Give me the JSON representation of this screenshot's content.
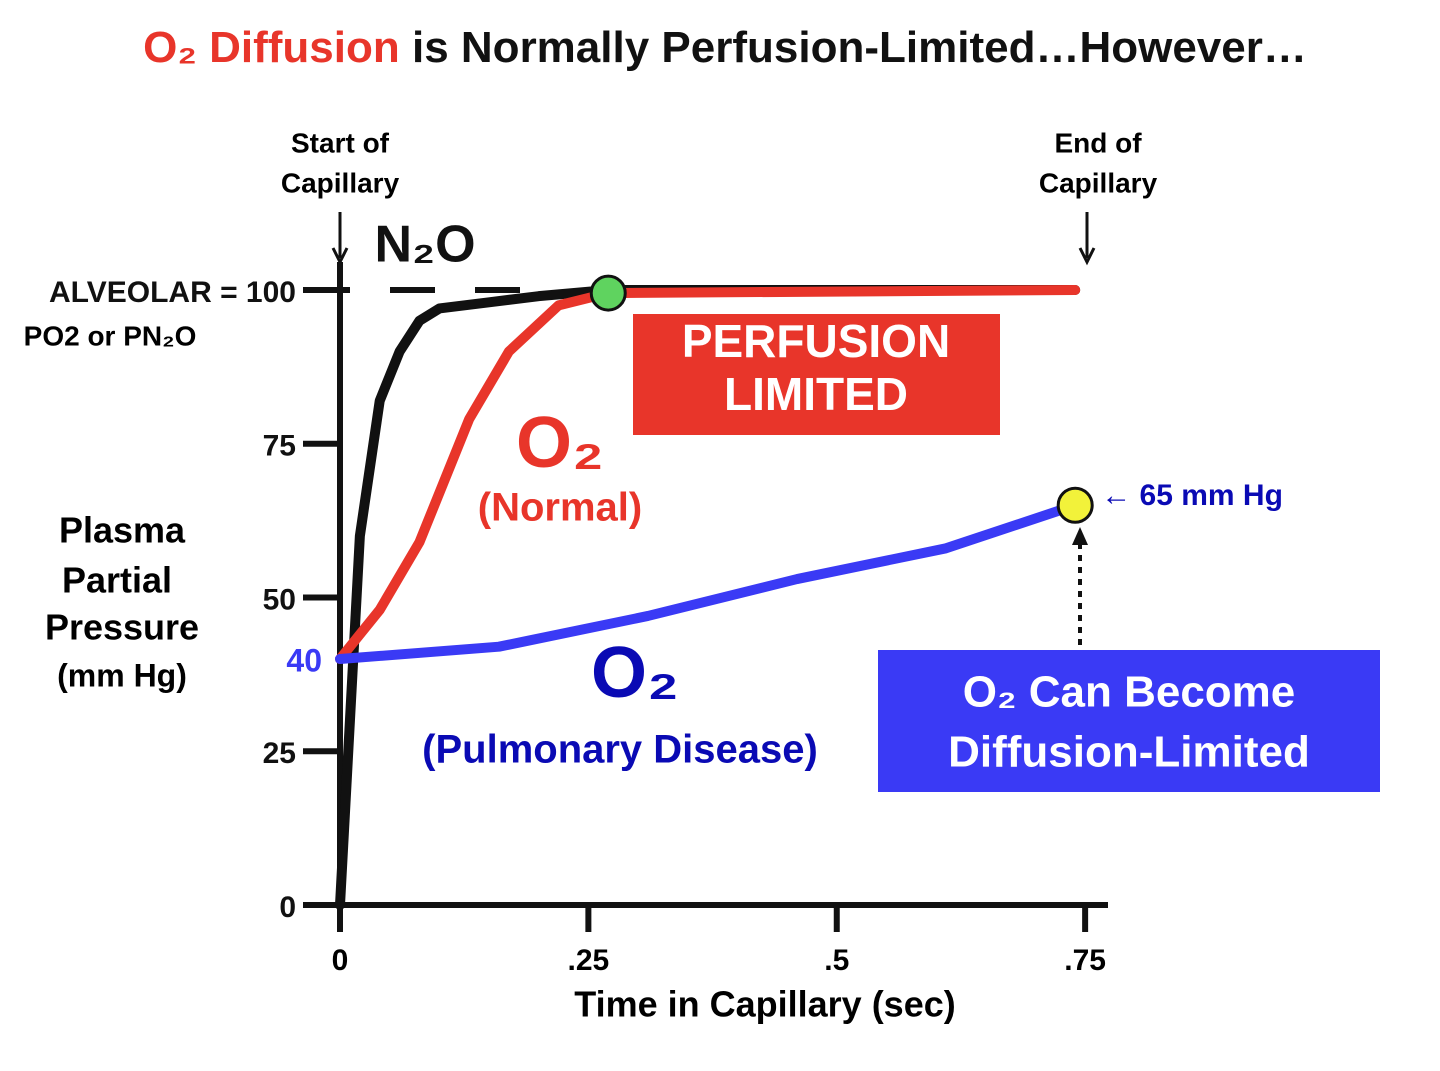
{
  "chart_data": {
    "type": "line",
    "title_parts": [
      {
        "text": "O₂ Diffusion",
        "color": "#e8352a"
      },
      {
        "text": " is Normally Perfusion-Limited…However…",
        "color": "#111111"
      }
    ],
    "y_label": [
      "Plasma",
      "Partial",
      "Pressure",
      "(mm Hg)"
    ],
    "y_sublabel": "PO2 or PN₂O",
    "x_label": "Time in Capillary (sec)",
    "xlim": [
      0,
      0.77
    ],
    "ylim": [
      0,
      100
    ],
    "xticks": [
      0,
      {
        "value": 0.25,
        "label": ".25"
      },
      {
        "value": 0.5,
        "label": ".5"
      },
      {
        "value": 0.75,
        "label": ".75"
      }
    ],
    "yticks": [
      0,
      25,
      {
        "value": 40,
        "label": "40",
        "color": "#3a3af5"
      },
      50,
      75,
      {
        "value": 100,
        "label": "ALVEOLAR = 100"
      }
    ],
    "series": [
      {
        "name": "N₂O",
        "color": "#111111",
        "label_color": "#111111",
        "x": [
          0,
          0.01,
          0.02,
          0.04,
          0.06,
          0.08,
          0.1,
          0.15,
          0.2,
          0.27,
          0.74
        ],
        "values": [
          0,
          30,
          60,
          82,
          90,
          95,
          97,
          98,
          99,
          100,
          100
        ]
      },
      {
        "name": "O₂",
        "note": "(Normal)",
        "color": "#e8352a",
        "label_color": "#e8352a",
        "x": [
          0,
          0.04,
          0.08,
          0.13,
          0.17,
          0.22,
          0.27,
          0.74
        ],
        "values": [
          40,
          48,
          59,
          79,
          90,
          97.5,
          99.5,
          100
        ],
        "highlight": {
          "index": 6,
          "color": "#5fd35f"
        }
      },
      {
        "name": "O₂",
        "note": "(Pulmonary Disease)",
        "color": "#3a3af5",
        "label_color": "#0a0ab4",
        "x": [
          0,
          0.16,
          0.31,
          0.46,
          0.61,
          0.74
        ],
        "values": [
          40,
          42,
          47,
          53,
          58,
          65
        ],
        "value_labels": [
          null,
          null,
          null,
          null,
          null,
          "← 65 mm Hg"
        ],
        "highlight": {
          "index": 5,
          "color": "#f2f23a"
        }
      }
    ],
    "annotations": {
      "start": [
        "Start of",
        "Capillary"
      ],
      "end": [
        "End of",
        "Capillary"
      ],
      "perfusion_box": [
        "PERFUSION",
        "LIMITED"
      ],
      "diffusion_box": [
        "O₂ Can Become",
        "Diffusion-Limited"
      ]
    }
  }
}
